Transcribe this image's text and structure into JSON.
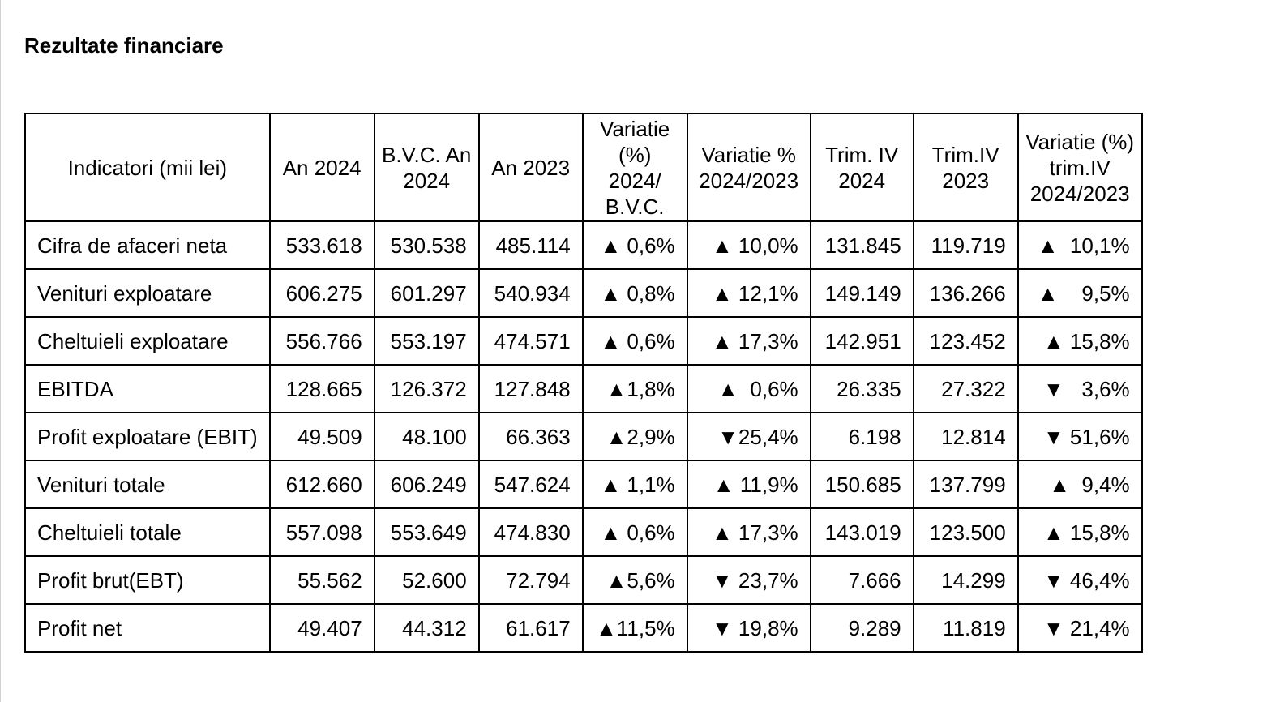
{
  "title": "Rezultate financiare",
  "headers": [
    "Indicatori (mii lei)",
    "An 2024",
    "B.V.C. An 2024",
    "An 2023",
    "Variatie (%) 2024/ B.V.C.",
    "Variatie % 2024/2023",
    "Trim. IV 2024",
    "Trim.IV 2023",
    "Variatie (%) trim.IV 2024/2023"
  ],
  "rows": [
    [
      "Cifra de afaceri neta",
      "533.618",
      "530.538",
      "485.114",
      "▲ 0,6%",
      "▲ 10,0%",
      "131.845",
      "119.719",
      "▲  10,1%"
    ],
    [
      "Venituri exploatare",
      "606.275",
      "601.297",
      "540.934",
      "▲ 0,8%",
      "▲ 12,1%",
      "149.149",
      "136.266",
      "▲    9,5%"
    ],
    [
      "Cheltuieli exploatare",
      "556.766",
      "553.197",
      "474.571",
      "▲ 0,6%",
      "▲ 17,3%",
      "142.951",
      "123.452",
      "▲ 15,8%"
    ],
    [
      "EBITDA",
      "128.665",
      "126.372",
      "127.848",
      "▲1,8%",
      "▲  0,6%",
      "26.335",
      "27.322",
      "▼   3,6%"
    ],
    [
      "Profit exploatare (EBIT)",
      "49.509",
      "48.100",
      "66.363",
      "▲2,9%",
      "▼25,4%",
      "6.198",
      "12.814",
      "▼ 51,6%"
    ],
    [
      "Venituri totale",
      "612.660",
      "606.249",
      "547.624",
      "▲ 1,1%",
      "▲ 11,9%",
      "150.685",
      "137.799",
      "▲  9,4%"
    ],
    [
      "Cheltuieli totale",
      "557.098",
      "553.649",
      "474.830",
      "▲ 0,6%",
      "▲ 17,3%",
      "143.019",
      "123.500",
      "▲ 15,8%"
    ],
    [
      "Profit brut(EBT)",
      "55.562",
      "52.600",
      "72.794",
      "▲5,6%",
      "▼ 23,7%",
      "7.666",
      "14.299",
      "▼ 46,4%"
    ],
    [
      "Profit net",
      "49.407",
      "44.312",
      "61.617",
      "▲11,5%",
      "▼ 19,8%",
      "9.289",
      "11.819",
      "▼ 21,4%"
    ]
  ]
}
